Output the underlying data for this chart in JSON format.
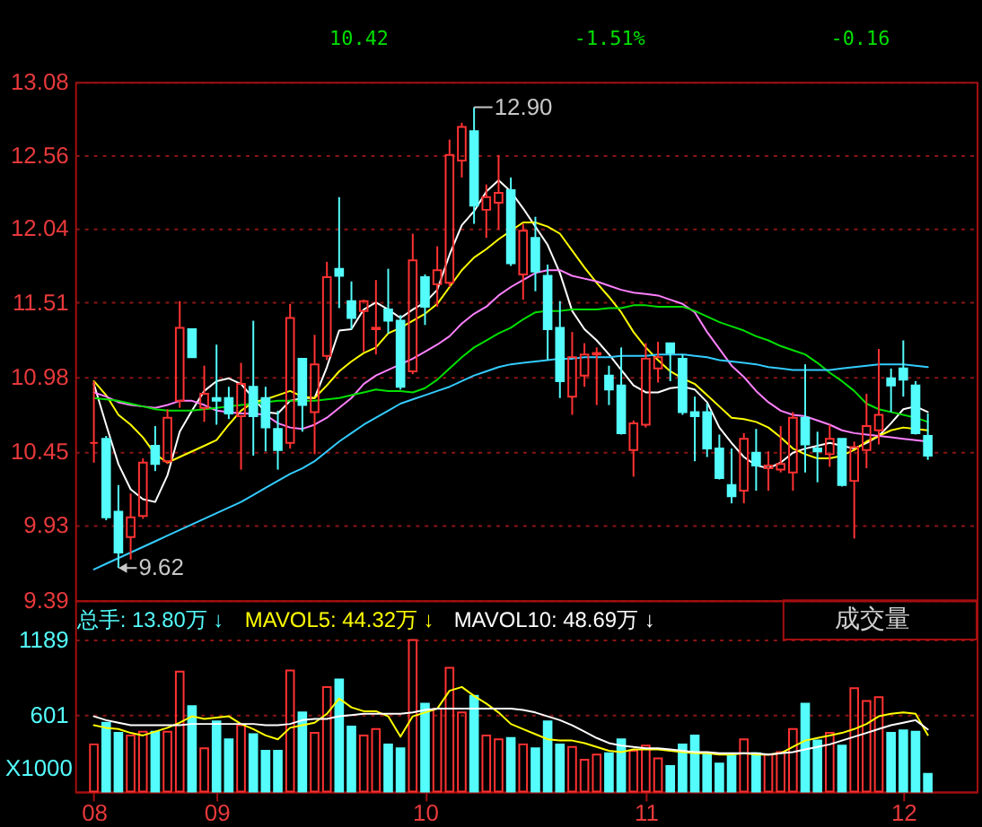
{
  "chart_data": [
    {
      "type": "candlestick",
      "categories": [
        "08",
        null,
        null,
        null,
        null,
        null,
        null,
        null,
        null,
        null,
        "09",
        null,
        null,
        null,
        null,
        null,
        null,
        null,
        null,
        null,
        null,
        null,
        null,
        null,
        null,
        null,
        null,
        "10",
        null,
        null,
        null,
        null,
        null,
        null,
        null,
        null,
        null,
        null,
        null,
        null,
        null,
        null,
        null,
        null,
        null,
        "11",
        null,
        null,
        null,
        null,
        null,
        null,
        null,
        null,
        null,
        null,
        null,
        null,
        null,
        null,
        null,
        null,
        null,
        null,
        null,
        null,
        "12",
        null,
        null
      ],
      "ohlc": [
        [
          10.51,
          10.95,
          10.37,
          10.51
        ],
        [
          10.54,
          10.56,
          9.96,
          9.98
        ],
        [
          10.02,
          10.21,
          9.62,
          9.73
        ],
        [
          9.84,
          10.15,
          9.68,
          9.98
        ],
        [
          9.99,
          10.4,
          9.97,
          10.37
        ],
        [
          10.49,
          10.63,
          10.31,
          10.36
        ],
        [
          10.38,
          10.75,
          10.36,
          10.69
        ],
        [
          10.81,
          11.52,
          10.76,
          11.33
        ],
        [
          11.32,
          11.32,
          11.12,
          11.12
        ],
        [
          10.76,
          11.06,
          10.66,
          10.86
        ],
        [
          10.83,
          11.21,
          10.64,
          10.81
        ],
        [
          10.83,
          10.91,
          10.68,
          10.72
        ],
        [
          10.7,
          11.08,
          10.32,
          10.93
        ],
        [
          10.91,
          11.38,
          10.42,
          10.7
        ],
        [
          10.83,
          10.91,
          10.45,
          10.62
        ],
        [
          10.61,
          10.74,
          10.32,
          10.46
        ],
        [
          10.51,
          11.5,
          10.47,
          11.4
        ],
        [
          11.11,
          11.11,
          10.59,
          10.78
        ],
        [
          10.73,
          11.28,
          10.43,
          11.07
        ],
        [
          11.13,
          11.8,
          11.1,
          11.69
        ],
        [
          11.75,
          12.26,
          11.47,
          11.7
        ],
        [
          11.52,
          11.66,
          11.32,
          11.4
        ],
        [
          11.45,
          11.53,
          11.16,
          11.52
        ],
        [
          11.32,
          11.67,
          11.14,
          11.33
        ],
        [
          11.46,
          11.75,
          11.29,
          11.38
        ],
        [
          11.38,
          11.42,
          10.89,
          10.91
        ],
        [
          11.02,
          12.0,
          11.0,
          11.81
        ],
        [
          11.69,
          11.71,
          11.35,
          11.48
        ],
        [
          11.64,
          11.91,
          11.48,
          11.74
        ],
        [
          11.65,
          12.67,
          11.62,
          12.56
        ],
        [
          12.52,
          12.79,
          12.4,
          12.76
        ],
        [
          12.73,
          12.9,
          12.07,
          12.2
        ],
        [
          12.17,
          12.35,
          11.97,
          12.26
        ],
        [
          12.22,
          12.56,
          12.03,
          12.29
        ],
        [
          12.31,
          12.4,
          11.77,
          11.79
        ],
        [
          11.71,
          12.07,
          11.53,
          12.02
        ],
        [
          11.97,
          12.12,
          11.59,
          11.73
        ],
        [
          11.7,
          11.78,
          11.1,
          11.32
        ],
        [
          11.33,
          11.52,
          10.83,
          10.95
        ],
        [
          10.84,
          11.3,
          10.71,
          11.12
        ],
        [
          10.99,
          11.22,
          10.91,
          11.14
        ],
        [
          11.14,
          11.19,
          10.78,
          11.15
        ],
        [
          10.99,
          11.06,
          10.78,
          10.89
        ],
        [
          10.92,
          11.19,
          10.57,
          10.58
        ],
        [
          10.46,
          10.67,
          10.27,
          10.65
        ],
        [
          10.64,
          11.22,
          10.62,
          11.11
        ],
        [
          11.04,
          11.23,
          10.94,
          11.12
        ],
        [
          11.22,
          11.22,
          10.95,
          11.15
        ],
        [
          11.11,
          11.14,
          10.71,
          10.73
        ],
        [
          10.73,
          10.84,
          10.38,
          10.7
        ],
        [
          10.73,
          10.79,
          10.41,
          10.47
        ],
        [
          10.47,
          10.57,
          10.25,
          10.26
        ],
        [
          10.21,
          10.47,
          10.08,
          10.13
        ],
        [
          10.17,
          10.58,
          10.08,
          10.54
        ],
        [
          10.44,
          10.61,
          10.17,
          10.35
        ],
        [
          10.33,
          10.45,
          10.17,
          10.35
        ],
        [
          10.32,
          10.63,
          10.3,
          10.36
        ],
        [
          10.3,
          10.73,
          10.17,
          10.69
        ],
        [
          10.69,
          11.07,
          10.3,
          10.5
        ],
        [
          10.47,
          10.59,
          10.23,
          10.45
        ],
        [
          10.43,
          10.64,
          10.34,
          10.54
        ],
        [
          10.54,
          10.54,
          10.2,
          10.21
        ],
        [
          10.24,
          10.52,
          9.83,
          10.48
        ],
        [
          10.46,
          10.86,
          10.33,
          10.63
        ],
        [
          10.6,
          11.18,
          10.5,
          10.71
        ],
        [
          10.97,
          11.04,
          10.73,
          10.92
        ],
        [
          11.04,
          11.24,
          10.84,
          10.96
        ],
        [
          10.92,
          10.95,
          10.57,
          10.58
        ],
        [
          10.56,
          10.72,
          10.39,
          10.42
        ]
      ],
      "colors": [
        "#ff3232",
        "#54fcfc",
        "#54fcfc",
        "#ff3232",
        "#ff3232",
        "#54fcfc",
        "#ff3232",
        "#ff3232",
        "#54fcfc",
        "#ff3232",
        "#54fcfc",
        "#54fcfc",
        "#ff3232",
        "#54fcfc",
        "#54fcfc",
        "#54fcfc",
        "#ff3232",
        "#54fcfc",
        "#ff3232",
        "#ff3232",
        "#54fcfc",
        "#54fcfc",
        "#ff3232",
        "#ff3232",
        "#54fcfc",
        "#54fcfc",
        "#ff3232",
        "#54fcfc",
        "#ff3232",
        "#ff3232",
        "#ff3232",
        "#54fcfc",
        "#ff3232",
        "#ff3232",
        "#54fcfc",
        "#ff3232",
        "#54fcfc",
        "#54fcfc",
        "#54fcfc",
        "#ff3232",
        "#ff3232",
        "#ff3232",
        "#54fcfc",
        "#54fcfc",
        "#ff3232",
        "#ff3232",
        "#ff3232",
        "#54fcfc",
        "#54fcfc",
        "#54fcfc",
        "#54fcfc",
        "#54fcfc",
        "#54fcfc",
        "#ff3232",
        "#54fcfc",
        "#ff3232",
        "#ff3232",
        "#ff3232",
        "#54fcfc",
        "#54fcfc",
        "#ff3232",
        "#54fcfc",
        "#ff3232",
        "#ff3232",
        "#ff3232",
        "#54fcfc",
        "#54fcfc",
        "#54fcfc",
        "#54fcfc"
      ],
      "series": [
        {
          "type": "line",
          "color": "#ffffff",
          "values": [
            10.93,
            10.64,
            10.36,
            10.18,
            10.11,
            10.09,
            10.28,
            10.59,
            10.74,
            10.88,
            10.95,
            10.97,
            10.93,
            10.83,
            10.73,
            10.72,
            10.81,
            10.83,
            10.83,
            11.05,
            11.31,
            11.32,
            11.46,
            11.51,
            11.46,
            11.4,
            11.46,
            11.51,
            11.6,
            11.85,
            12.06,
            12.16,
            12.3,
            12.38,
            12.3,
            12.18,
            12.05,
            11.92,
            11.72,
            11.45,
            11.32,
            11.24,
            11.14,
            11.03,
            10.92,
            10.87,
            10.87,
            10.9,
            10.91,
            10.89,
            10.8,
            10.62,
            10.51,
            10.41,
            10.35,
            10.33,
            10.37,
            10.44,
            10.47,
            10.49,
            10.51,
            10.49,
            10.47,
            10.51,
            10.56,
            10.65,
            10.75,
            10.77,
            10.73
          ]
        },
        {
          "type": "line",
          "color": "#ffff00",
          "values": [
            10.95,
            10.85,
            10.71,
            10.64,
            10.55,
            10.43,
            10.37,
            10.41,
            10.45,
            10.49,
            10.53,
            10.64,
            10.74,
            10.8,
            10.82,
            10.85,
            10.88,
            10.84,
            10.83,
            10.92,
            11.02,
            11.09,
            11.15,
            11.19,
            11.29,
            11.33,
            11.38,
            11.43,
            11.5,
            11.62,
            11.74,
            11.83,
            11.89,
            11.96,
            12.02,
            12.08,
            12.08,
            12.05,
            12.0,
            11.88,
            11.76,
            11.65,
            11.55,
            11.44,
            11.3,
            11.19,
            11.1,
            11.02,
            10.97,
            10.93,
            10.85,
            10.77,
            10.69,
            10.68,
            10.66,
            10.62,
            10.55,
            10.47,
            10.43,
            10.4,
            10.4,
            10.42,
            10.46,
            10.52,
            10.56,
            10.6,
            10.62,
            10.61,
            10.6
          ]
        },
        {
          "type": "line",
          "color": "#ff80ff",
          "values": [
            10.87,
            10.84,
            10.8,
            10.78,
            10.77,
            10.76,
            10.78,
            10.81,
            10.81,
            10.78,
            10.74,
            10.73,
            10.72,
            10.72,
            10.71,
            10.65,
            10.62,
            10.61,
            10.64,
            10.69,
            10.76,
            10.83,
            10.93,
            10.99,
            11.03,
            11.07,
            11.11,
            11.16,
            11.21,
            11.27,
            11.36,
            11.43,
            11.48,
            11.56,
            11.62,
            11.67,
            11.72,
            11.74,
            11.74,
            11.7,
            11.68,
            11.66,
            11.63,
            11.6,
            11.58,
            11.57,
            11.56,
            11.53,
            11.5,
            11.44,
            11.3,
            11.18,
            11.06,
            10.98,
            10.88,
            10.8,
            10.74,
            10.71,
            10.7,
            10.67,
            10.64,
            10.6,
            10.58,
            10.57,
            10.56,
            10.55,
            10.54,
            10.53,
            10.52
          ]
        },
        {
          "type": "line",
          "color": "#00e000",
          "values": [
            10.83,
            10.82,
            10.81,
            10.79,
            10.77,
            10.75,
            10.74,
            10.74,
            10.74,
            10.75,
            10.76,
            10.77,
            10.78,
            10.79,
            10.8,
            10.81,
            10.81,
            10.81,
            10.81,
            10.82,
            10.83,
            10.85,
            10.87,
            10.89,
            10.88,
            10.88,
            10.87,
            10.9,
            10.96,
            11.04,
            11.12,
            11.19,
            11.24,
            11.29,
            11.33,
            11.39,
            11.44,
            11.45,
            11.45,
            11.46,
            11.46,
            11.46,
            11.47,
            11.47,
            11.49,
            11.49,
            11.48,
            11.48,
            11.48,
            11.45,
            11.41,
            11.37,
            11.34,
            11.31,
            11.27,
            11.24,
            11.2,
            11.17,
            11.14,
            11.08,
            11.01,
            10.95,
            10.88,
            10.79,
            10.75,
            10.73,
            10.71,
            10.69,
            10.66
          ]
        },
        {
          "type": "line",
          "color": "#33ccff",
          "values": [
            9.61,
            9.65,
            9.69,
            9.73,
            9.77,
            9.81,
            9.85,
            9.89,
            9.93,
            9.97,
            10.01,
            10.05,
            10.09,
            10.14,
            10.19,
            10.24,
            10.29,
            10.33,
            10.38,
            10.45,
            10.52,
            10.58,
            10.64,
            10.69,
            10.74,
            10.79,
            10.82,
            10.85,
            10.88,
            10.91,
            10.95,
            10.99,
            11.02,
            11.05,
            11.07,
            11.08,
            11.09,
            11.1,
            11.11,
            11.11,
            11.12,
            11.12,
            11.12,
            11.13,
            11.13,
            11.13,
            11.14,
            11.14,
            11.14,
            11.13,
            11.12,
            11.1,
            11.09,
            11.08,
            11.07,
            11.05,
            11.04,
            11.03,
            11.03,
            11.03,
            11.03,
            11.04,
            11.05,
            11.06,
            11.07,
            11.07,
            11.07,
            11.06,
            11.05
          ]
        }
      ],
      "ylim": [
        9.39,
        13.08
      ],
      "yticks": [
        13.08,
        12.56,
        12.04,
        11.51,
        10.98,
        10.45,
        9.93,
        9.39
      ],
      "grid": "y",
      "tick_labels": "y",
      "annotations": [
        "10.42",
        "-1.51%",
        "-0.16",
        "12.90",
        "9.62"
      ]
    },
    {
      "type": "bar",
      "categories": [
        "08",
        null,
        null,
        null,
        null,
        null,
        null,
        null,
        null,
        null,
        "09",
        null,
        null,
        null,
        null,
        null,
        null,
        null,
        null,
        null,
        null,
        null,
        null,
        null,
        null,
        null,
        null,
        "10",
        null,
        null,
        null,
        null,
        null,
        null,
        null,
        null,
        null,
        null,
        null,
        null,
        null,
        null,
        null,
        null,
        null,
        "11",
        null,
        null,
        null,
        null,
        null,
        null,
        null,
        null,
        null,
        null,
        null,
        null,
        null,
        null,
        null,
        null,
        null,
        null,
        null,
        null,
        "12",
        null,
        null
      ],
      "series": [
        {
          "name": "总手: 13.80万 ↓",
          "type": "bar",
          "color": "#54fcfc",
          "colors": [
            "#ff3232",
            "#54fcfc",
            "#54fcfc",
            "#ff3232",
            "#ff3232",
            "#54fcfc",
            "#ff3232",
            "#ff3232",
            "#54fcfc",
            "#ff3232",
            "#54fcfc",
            "#54fcfc",
            "#ff3232",
            "#54fcfc",
            "#54fcfc",
            "#54fcfc",
            "#ff3232",
            "#54fcfc",
            "#ff3232",
            "#ff3232",
            "#54fcfc",
            "#54fcfc",
            "#ff3232",
            "#ff3232",
            "#54fcfc",
            "#54fcfc",
            "#ff3232",
            "#54fcfc",
            "#ff3232",
            "#ff3232",
            "#ff3232",
            "#54fcfc",
            "#ff3232",
            "#ff3232",
            "#54fcfc",
            "#ff3232",
            "#54fcfc",
            "#54fcfc",
            "#54fcfc",
            "#ff3232",
            "#ff3232",
            "#ff3232",
            "#54fcfc",
            "#54fcfc",
            "#ff3232",
            "#ff3232",
            "#ff3232",
            "#54fcfc",
            "#54fcfc",
            "#54fcfc",
            "#54fcfc",
            "#54fcfc",
            "#54fcfc",
            "#ff3232",
            "#54fcfc",
            "#ff3232",
            "#ff3232",
            "#ff3232",
            "#54fcfc",
            "#54fcfc",
            "#ff3232",
            "#54fcfc",
            "#ff3232",
            "#ff3232",
            "#ff3232",
            "#54fcfc",
            "#54fcfc",
            "#54fcfc",
            "#54fcfc"
          ],
          "values": [
            370,
            540,
            460,
            440,
            470,
            470,
            470,
            940,
            670,
            340,
            550,
            410,
            520,
            450,
            320,
            320,
            950,
            620,
            460,
            820,
            880,
            510,
            440,
            490,
            370,
            340,
            1189,
            690,
            650,
            970,
            620,
            750,
            440,
            410,
            420,
            370,
            340,
            550,
            370,
            350,
            250,
            290,
            300,
            410,
            320,
            360,
            260,
            200,
            370,
            440,
            290,
            220,
            280,
            410,
            300,
            290,
            310,
            490,
            690,
            400,
            460,
            360,
            810,
            710,
            740,
            460,
            480,
            470,
            138
          ]
        },
        {
          "name": "MAVOL5: 44.32万 ↓",
          "type": "line",
          "color": "#ffff00",
          "values": [
            520,
            500,
            490,
            460,
            440,
            470,
            500,
            540,
            590,
            570,
            580,
            590,
            530,
            490,
            440,
            410,
            500,
            520,
            540,
            610,
            730,
            660,
            630,
            630,
            590,
            430,
            590,
            620,
            650,
            790,
            820,
            750,
            690,
            620,
            530,
            490,
            450,
            410,
            400,
            400,
            380,
            350,
            320,
            310,
            330,
            330,
            330,
            320,
            310,
            300,
            300,
            290,
            290,
            300,
            290,
            290,
            300,
            350,
            400,
            420,
            440,
            460,
            490,
            530,
            590,
            610,
            620,
            610,
            443.2
          ]
        },
        {
          "name": "MAVOL10: 48.69万 ↓",
          "type": "line",
          "color": "#ffffff",
          "values": [
            590,
            560,
            540,
            520,
            520,
            520,
            520,
            520,
            530,
            530,
            530,
            530,
            530,
            530,
            520,
            520,
            530,
            560,
            570,
            570,
            590,
            600,
            610,
            610,
            610,
            610,
            620,
            640,
            650,
            650,
            650,
            650,
            650,
            650,
            650,
            640,
            620,
            590,
            560,
            520,
            470,
            420,
            380,
            360,
            350,
            340,
            340,
            330,
            320,
            310,
            310,
            300,
            300,
            300,
            300,
            290,
            300,
            310,
            330,
            350,
            370,
            400,
            430,
            460,
            490,
            520,
            540,
            560,
            486.9
          ]
        }
      ],
      "ylim": [
        0,
        1500
      ],
      "yticks": [
        601,
        1189
      ],
      "ylabel": "X1000",
      "grid": "y",
      "legend": "top left",
      "annotations": [
        "成交量"
      ]
    }
  ]
}
